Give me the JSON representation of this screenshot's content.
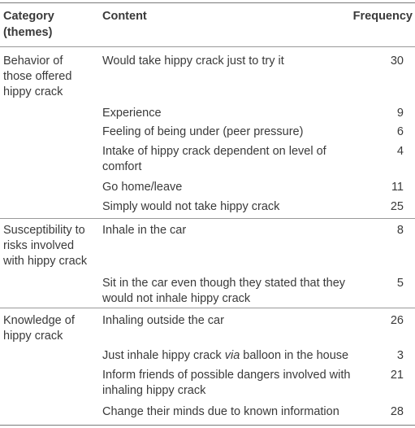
{
  "header": {
    "category": "Category (themes)",
    "content": "Content",
    "frequency": "Frequency"
  },
  "groups": [
    {
      "category": "Behavior of those offered hippy crack",
      "rows": [
        {
          "content": "Would take hippy crack just to try it",
          "frequency": "30"
        },
        {
          "content": "Experience",
          "frequency": "9"
        },
        {
          "content": "Feeling of being under (peer pressure)",
          "frequency": "6"
        },
        {
          "content": "Intake of hippy crack dependent on level of comfort",
          "frequency": "4"
        },
        {
          "content": "Go home/leave",
          "frequency": "11"
        },
        {
          "content": "Simply would not take hippy crack",
          "frequency": "25"
        }
      ]
    },
    {
      "category": "Susceptibility to risks involved with hippy crack",
      "rows": [
        {
          "content": "Inhale in the car",
          "frequency": "8"
        },
        {
          "content": "Sit in the car even though they stated that they would not inhale hippy crack",
          "frequency": "5"
        }
      ]
    },
    {
      "category": "Knowledge of hippy crack",
      "rows": [
        {
          "content": "Inhaling outside the car",
          "frequency": "26"
        },
        {
          "content_before": "Just inhale hippy crack ",
          "content_italic": "via",
          "content_after": " balloon in the house",
          "frequency": "3"
        },
        {
          "content": "Inform friends of possible dangers involved with inhaling hippy crack",
          "frequency": "21"
        },
        {
          "content": "Change their minds due to known information",
          "frequency": "28"
        }
      ]
    }
  ]
}
